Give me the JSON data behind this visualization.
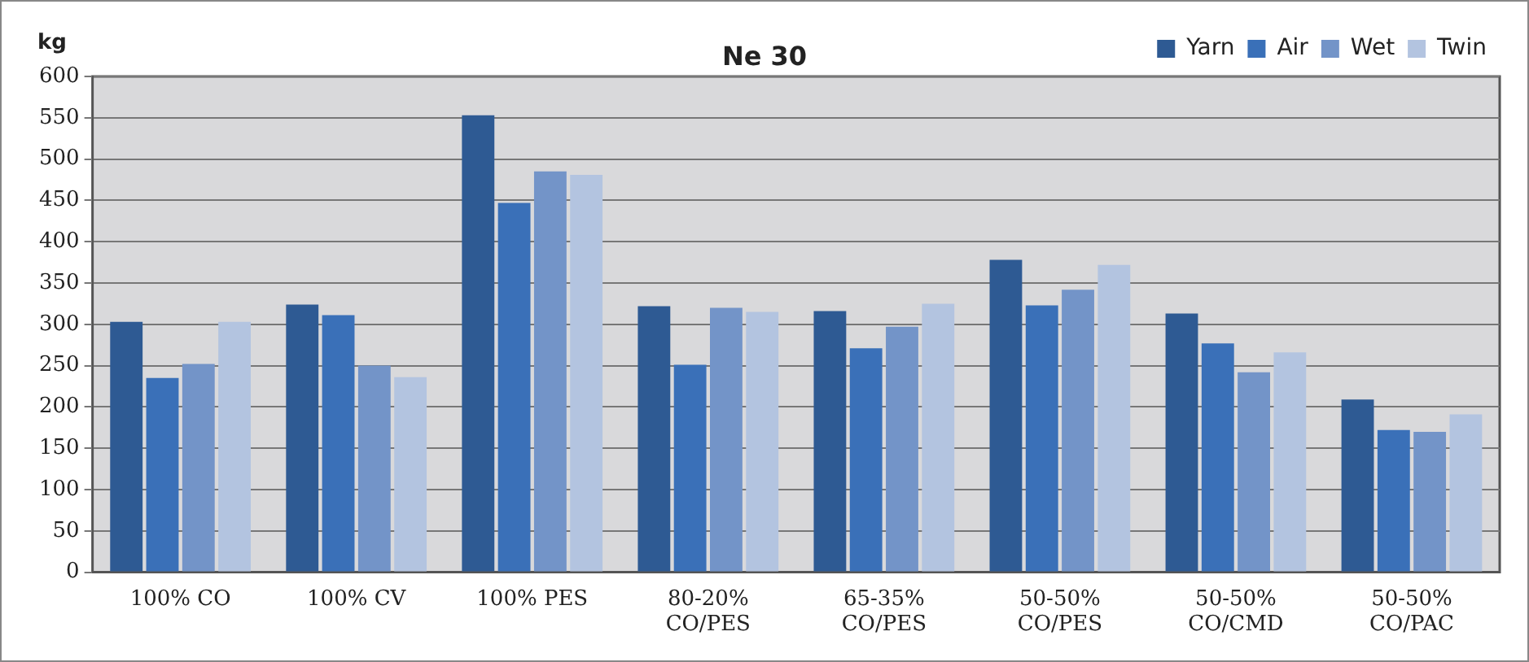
{
  "chart_data": {
    "type": "bar",
    "title": "Ne 30",
    "ylabel": "kg",
    "categories": [
      "100% CO",
      "100% CV",
      "100% PES",
      "80-20%\nCO/PES",
      "65-35%\nCO/PES",
      "50-50%\nCO/PES",
      "50-50%\nCO/CMD",
      "50-50%\nCO/PAC"
    ],
    "series": [
      {
        "name": "Yarn",
        "color": "#2e5a93",
        "values": [
          303,
          324,
          553,
          322,
          316,
          378,
          313,
          209
        ]
      },
      {
        "name": "Air",
        "color": "#3a70b8",
        "values": [
          235,
          311,
          447,
          251,
          271,
          323,
          277,
          172
        ]
      },
      {
        "name": "Wet",
        "color": "#7394c8",
        "values": [
          252,
          250,
          485,
          320,
          297,
          342,
          242,
          170
        ]
      },
      {
        "name": "Twin",
        "color": "#b3c4e0",
        "values": [
          303,
          236,
          481,
          315,
          325,
          372,
          266,
          191
        ]
      }
    ],
    "ylim": [
      0,
      600
    ],
    "yticks": [
      0,
      50,
      100,
      150,
      200,
      250,
      300,
      350,
      400,
      450,
      500,
      550,
      600
    ],
    "grid": "y",
    "legend": "top right"
  }
}
